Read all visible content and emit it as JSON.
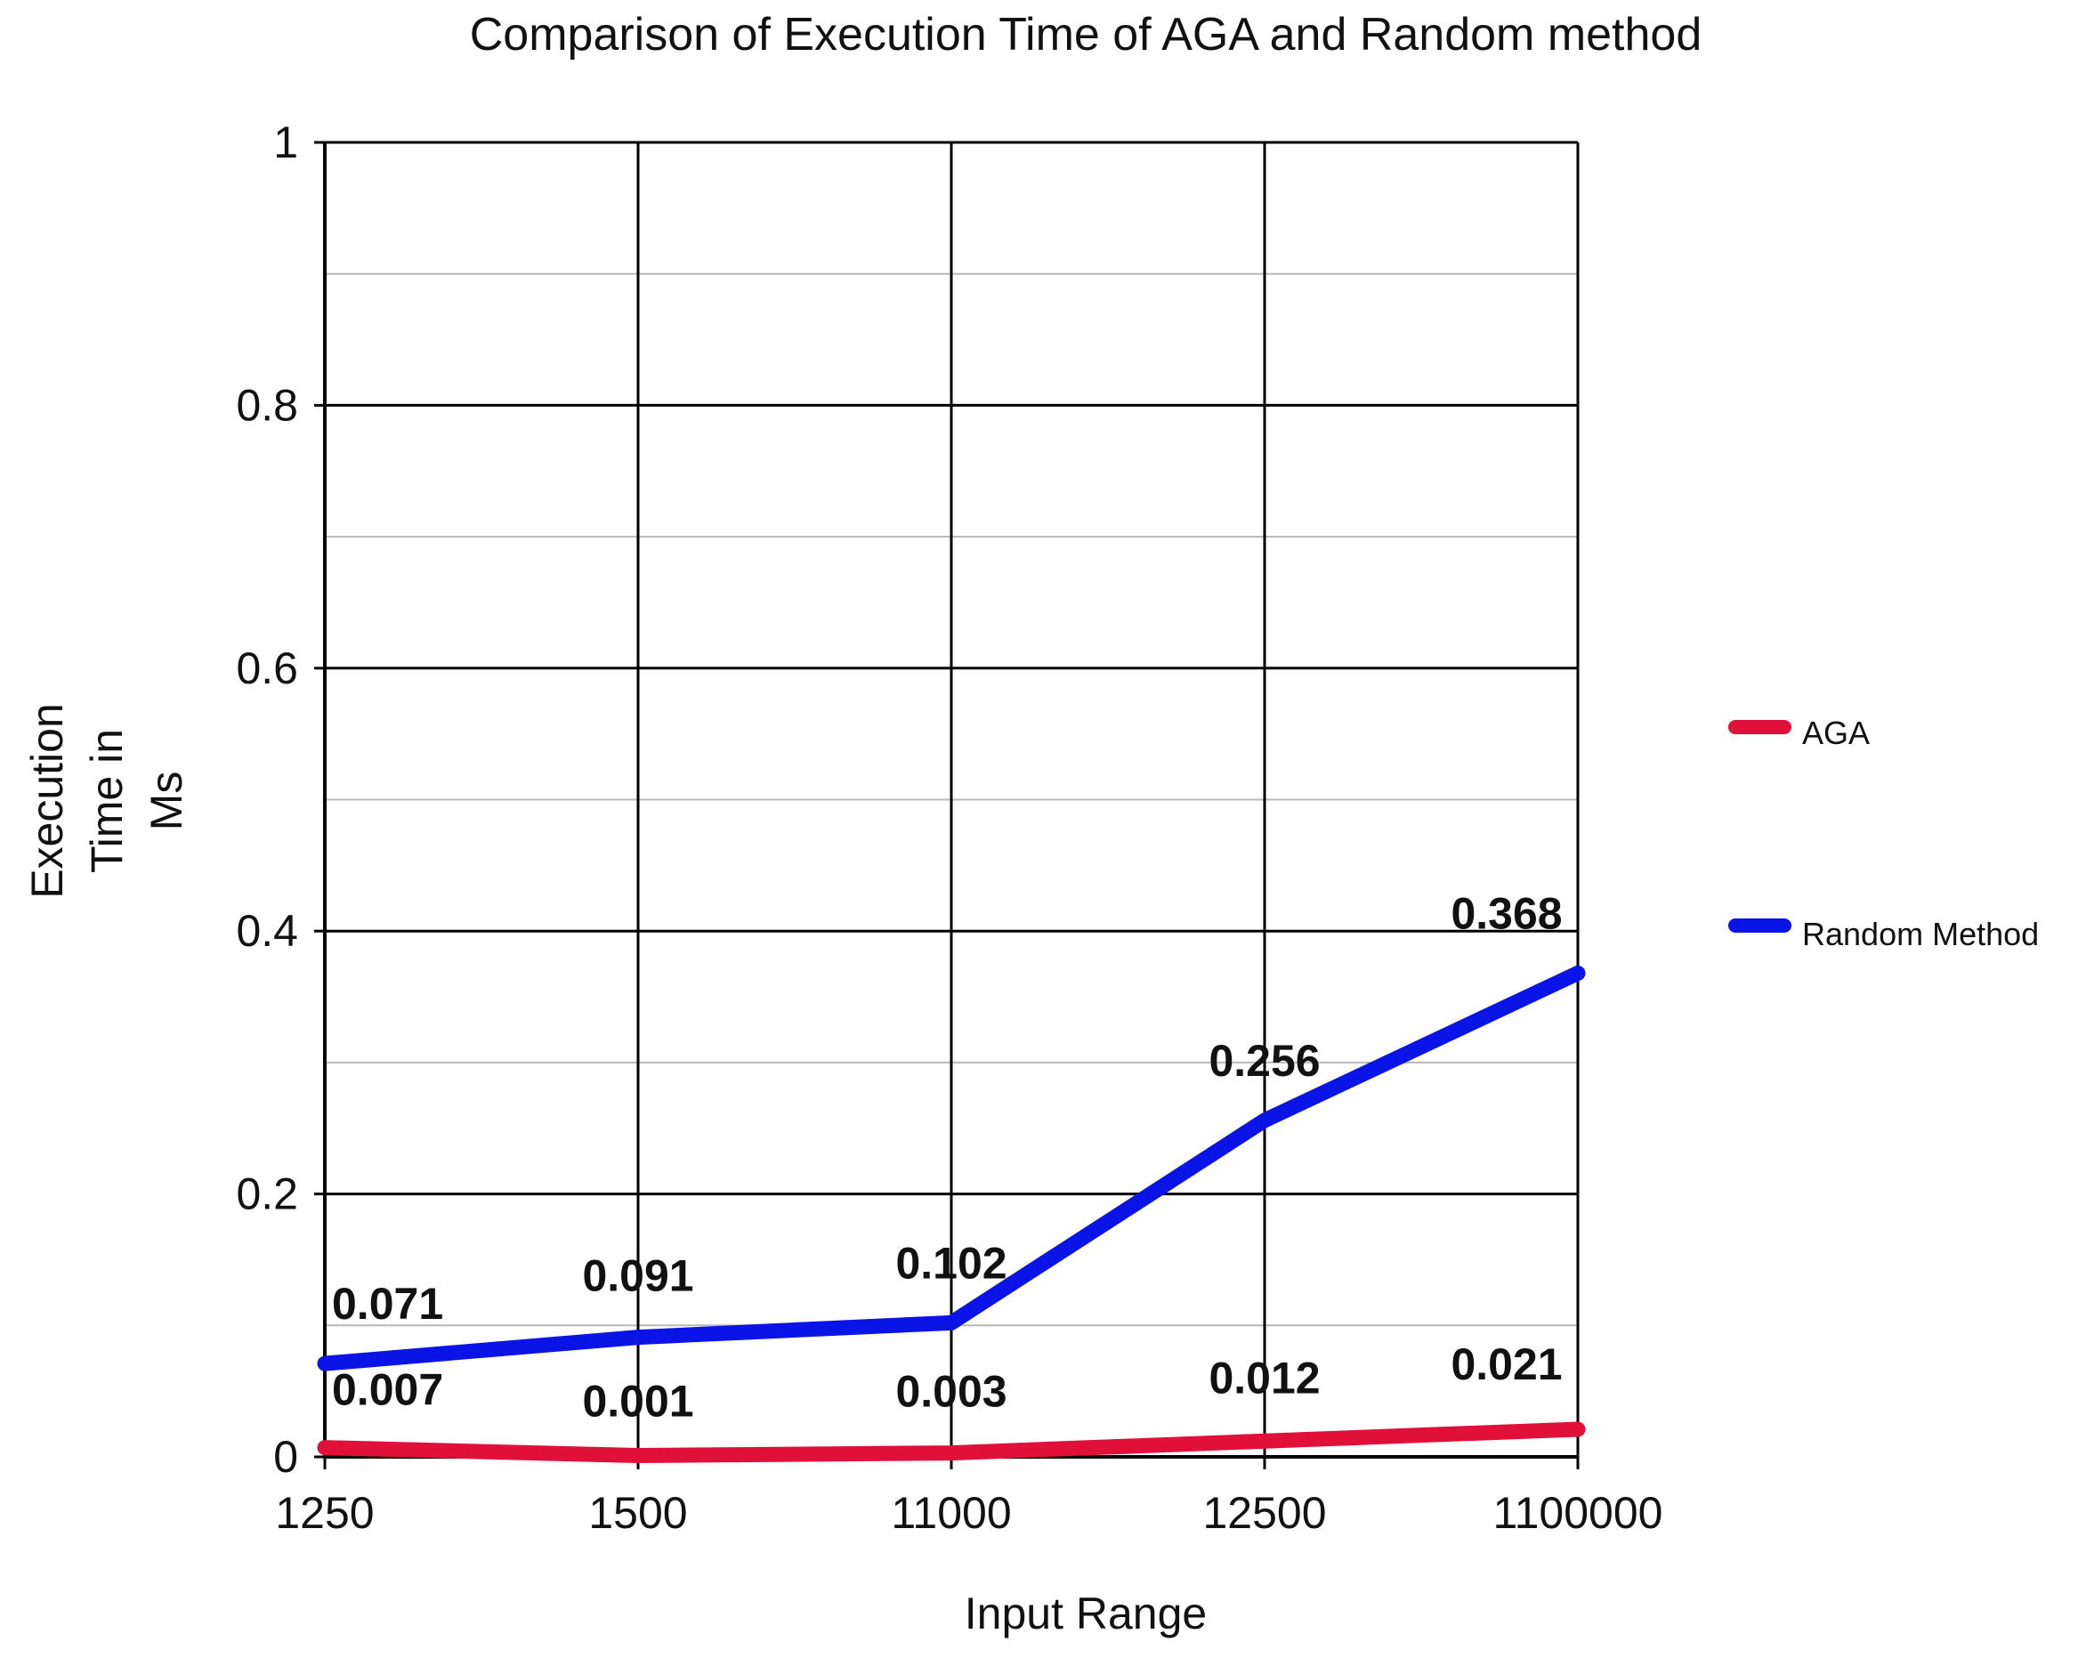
{
  "chart_data": {
    "type": "line",
    "title": "Comparison of Execution Time of AGA and Random method",
    "xlabel": "Input Range",
    "ylabel_lines": [
      "Execution",
      "Time in",
      "Ms"
    ],
    "categories": [
      "1250",
      "1500",
      "11000",
      "12500",
      "1100000"
    ],
    "ylim": [
      0,
      1
    ],
    "yticks": [
      0,
      0.2,
      0.4,
      0.6,
      0.8,
      1
    ],
    "ytick_labels": [
      "0",
      "0.2",
      "0.4",
      "0.6",
      "0.8",
      "1"
    ],
    "grid": true,
    "legend_position": "right",
    "series": [
      {
        "name": "AGA",
        "color": "#e0103a",
        "values": [
          0.007,
          0.001,
          0.003,
          0.012,
          0.021
        ],
        "labels": [
          "0.007",
          "0.001",
          "0.003",
          "0.012",
          "0.021"
        ]
      },
      {
        "name": "Random Method",
        "color": "#0a14e6",
        "values": [
          0.071,
          0.091,
          0.102,
          0.256,
          0.368
        ],
        "labels": [
          "0.071",
          "0.091",
          "0.102",
          "0.256",
          "0.368"
        ]
      }
    ]
  }
}
